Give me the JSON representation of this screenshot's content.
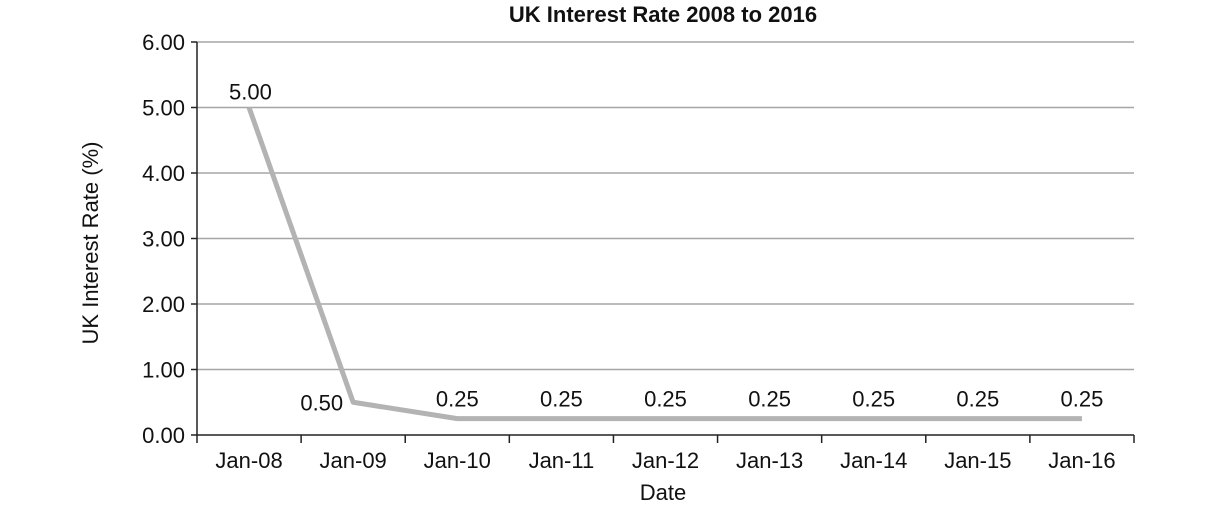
{
  "chart_data": {
    "type": "line",
    "title": "UK Interest Rate 2008 to 2016",
    "xlabel": "Date",
    "ylabel": "UK Interest Rate (%)",
    "categories": [
      "Jan-08",
      "Jan-09",
      "Jan-10",
      "Jan-11",
      "Jan-12",
      "Jan-13",
      "Jan-14",
      "Jan-15",
      "Jan-16"
    ],
    "series": [
      {
        "values": [
          5.0,
          0.5,
          0.25,
          0.25,
          0.25,
          0.25,
          0.25,
          0.25,
          0.25
        ],
        "labels": [
          "5.00",
          "0.50",
          "0.25",
          "0.25",
          "0.25",
          "0.25",
          "0.25",
          "0.25",
          "0.25"
        ]
      }
    ],
    "ylim": [
      0,
      6
    ],
    "yticks": [
      "0.00",
      "1.00",
      "2.00",
      "3.00",
      "4.00",
      "5.00",
      "6.00"
    ],
    "grid": true,
    "line_color": "#b3b3b4"
  }
}
